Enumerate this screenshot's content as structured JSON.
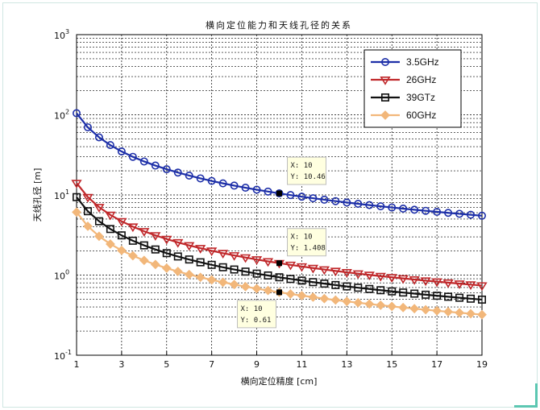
{
  "chart_data": {
    "type": "line",
    "title": "横向定位能力和天线孔径的关系",
    "xlabel": "横向定位精度 [cm]",
    "ylabel": "天线孔径 [m]",
    "x_ticks": [
      "1",
      "3",
      "5",
      "7",
      "9",
      "11",
      "13",
      "15",
      "17",
      "19"
    ],
    "y_ticks": [
      {
        "value": 0.1,
        "base": "10",
        "exp": "-1"
      },
      {
        "value": 1,
        "base": "10",
        "exp": "0"
      },
      {
        "value": 10,
        "base": "10",
        "exp": "1"
      },
      {
        "value": 100,
        "base": "10",
        "exp": "2"
      },
      {
        "value": 1000,
        "base": "10",
        "exp": "3"
      }
    ],
    "xlim": [
      1,
      19
    ],
    "ylim": [
      0.1,
      1000
    ],
    "y_scale": "log",
    "grid": true,
    "legend_position": "top-right",
    "x": [
      1,
      1.5,
      2,
      2.5,
      3,
      3.5,
      4,
      4.5,
      5,
      5.5,
      6,
      6.5,
      7,
      7.5,
      8,
      8.5,
      9,
      9.5,
      10,
      10.5,
      11,
      11.5,
      12,
      12.5,
      13,
      13.5,
      14,
      14.5,
      15,
      15.5,
      16,
      16.5,
      17,
      17.5,
      18,
      18.5,
      19
    ],
    "series": [
      {
        "name": "3.5GHz",
        "color": "#1d2fa8",
        "marker": "circle",
        "factor": 104.6
      },
      {
        "name": "26GHz",
        "color": "#c0282b",
        "marker": "triangle-down",
        "factor": 14.08
      },
      {
        "name": "39GTz",
        "color": "#111111",
        "marker": "square",
        "factor": 9.39
      },
      {
        "name": "60GHz",
        "color": "#f2b77a",
        "marker": "diamond",
        "factor": 6.1
      }
    ],
    "datatips": [
      {
        "series": "3.5GHz",
        "x": 10,
        "y": 10.46,
        "line1": "X: 10",
        "line2": "Y: 10.46"
      },
      {
        "series": "26GHz",
        "x": 10,
        "y": 1.408,
        "line1": "X: 10",
        "line2": "Y: 1.408"
      },
      {
        "series": "60GHz",
        "x": 10,
        "y": 0.61,
        "line1": "X: 10",
        "line2": "Y: 0.61"
      }
    ]
  }
}
